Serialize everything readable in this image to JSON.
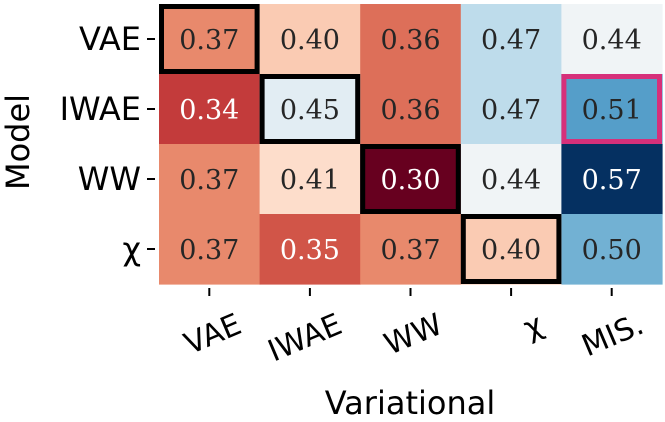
{
  "chart_data": {
    "type": "heatmap",
    "xlabel": "Variational",
    "ylabel": "Model",
    "x_categories": [
      "VAE",
      "IWAE",
      "WW",
      "χ",
      "MIS."
    ],
    "y_categories": [
      "VAE",
      "IWAE",
      "WW",
      "χ"
    ],
    "values": [
      [
        0.37,
        0.4,
        0.36,
        0.47,
        0.44
      ],
      [
        0.34,
        0.45,
        0.36,
        0.47,
        0.51
      ],
      [
        0.37,
        0.41,
        0.3,
        0.44,
        0.57
      ],
      [
        0.37,
        0.35,
        0.37,
        0.4,
        0.5
      ]
    ],
    "labels": [
      [
        "0.37",
        "0.40",
        "0.36",
        "0.47",
        "0.44"
      ],
      [
        "0.34",
        "0.45",
        "0.36",
        "0.47",
        "0.51"
      ],
      [
        "0.37",
        "0.41",
        "0.30",
        "0.44",
        "0.57"
      ],
      [
        "0.37",
        "0.35",
        "0.37",
        "0.40",
        "0.50"
      ]
    ],
    "colormap": "RdBu",
    "color_range": [
      0.3,
      0.57
    ],
    "highlighted_cells": [
      {
        "row": 0,
        "col": 0,
        "color": "#000000"
      },
      {
        "row": 1,
        "col": 1,
        "color": "#000000"
      },
      {
        "row": 2,
        "col": 2,
        "color": "#000000"
      },
      {
        "row": 3,
        "col": 3,
        "color": "#000000"
      },
      {
        "row": 1,
        "col": 4,
        "color": "#d6307a"
      }
    ]
  }
}
